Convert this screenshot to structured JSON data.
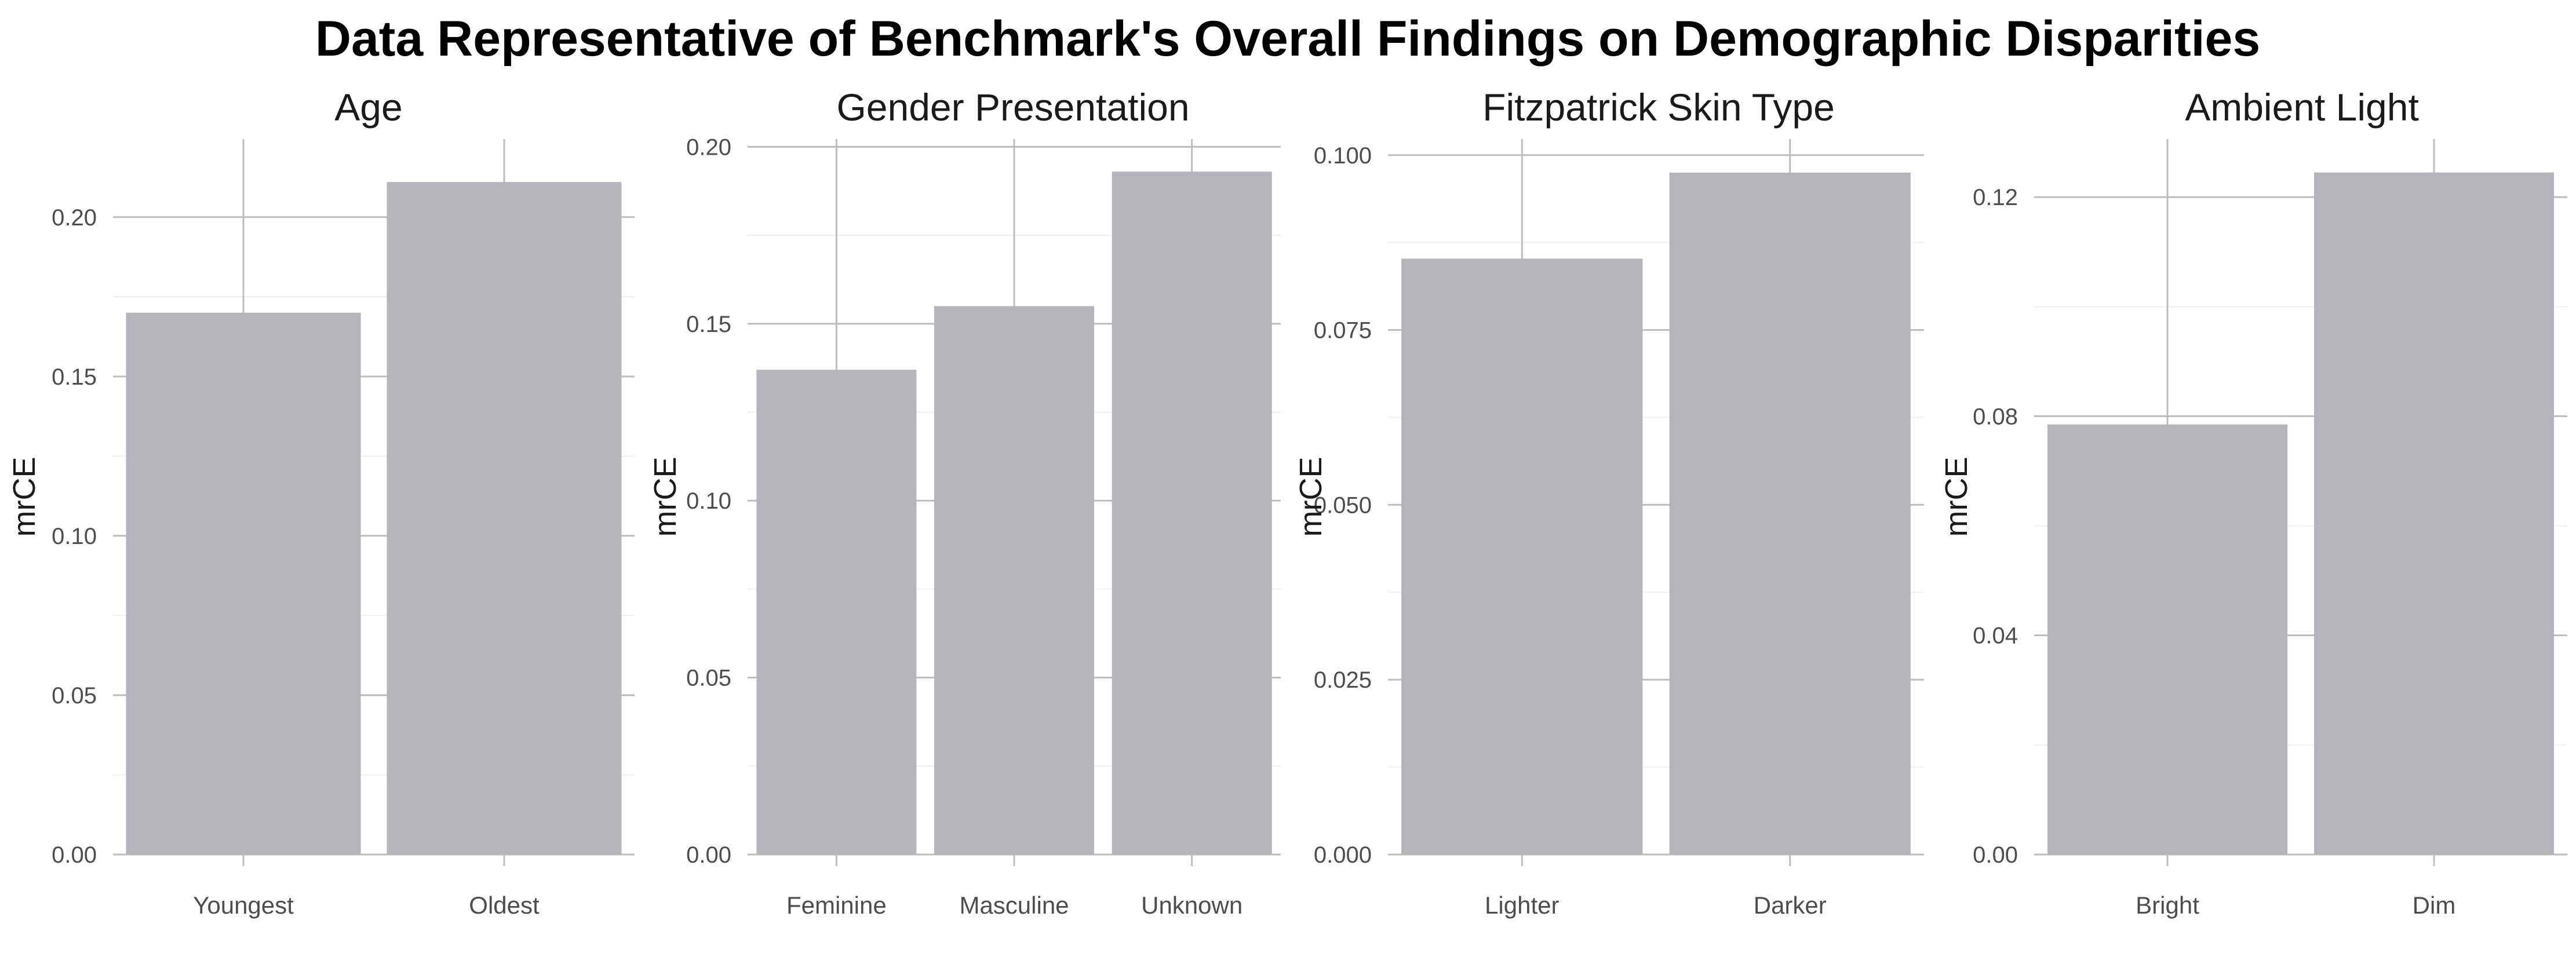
{
  "title": "Data Representative of Benchmark's Overall Findings on Demographic Disparities",
  "colors": {
    "bar": "#b6b4bb",
    "grid_major": "#bdbdbd",
    "grid_minor": "#efefef"
  },
  "chart_data": [
    {
      "type": "bar",
      "title": "Age",
      "ylabel": "mrCE",
      "categories": [
        "Youngest",
        "Oldest"
      ],
      "values": [
        0.17,
        0.211
      ],
      "ylim": [
        0,
        0.2245
      ],
      "yticks": [
        0,
        0.05,
        0.1,
        0.15,
        0.2
      ],
      "ytick_labels": [
        "0.00",
        "0.05",
        "0.10",
        "0.15",
        "0.20"
      ],
      "grid": true
    },
    {
      "type": "bar",
      "title": "Gender Presentation",
      "ylabel": "mrCE",
      "categories": [
        "Feminine",
        "Masculine",
        "Unknown"
      ],
      "values": [
        0.137,
        0.155,
        0.193
      ],
      "ylim": [
        0,
        0.2022
      ],
      "yticks": [
        0,
        0.05,
        0.1,
        0.15,
        0.2
      ],
      "ytick_labels": [
        "0.00",
        "0.05",
        "0.10",
        "0.15",
        "0.20"
      ],
      "grid": true
    },
    {
      "type": "bar",
      "title": "Fitzpatrick Skin Type",
      "ylabel": "mrCE",
      "categories": [
        "Lighter",
        "Darker"
      ],
      "values": [
        0.0852,
        0.0975
      ],
      "ylim": [
        0,
        0.1023
      ],
      "yticks": [
        0,
        0.025,
        0.05,
        0.075,
        0.1
      ],
      "ytick_labels": [
        "0.000",
        "0.025",
        "0.050",
        "0.075",
        "0.100"
      ],
      "grid": true
    },
    {
      "type": "bar",
      "title": "Ambient Light",
      "ylabel": "mrCE",
      "categories": [
        "Bright",
        "Dim"
      ],
      "values": [
        0.0785,
        0.1245
      ],
      "ylim": [
        0,
        0.1306
      ],
      "yticks": [
        0,
        0.04,
        0.08,
        0.12
      ],
      "ytick_labels": [
        "0.00",
        "0.04",
        "0.08",
        "0.12"
      ],
      "grid": true
    }
  ]
}
